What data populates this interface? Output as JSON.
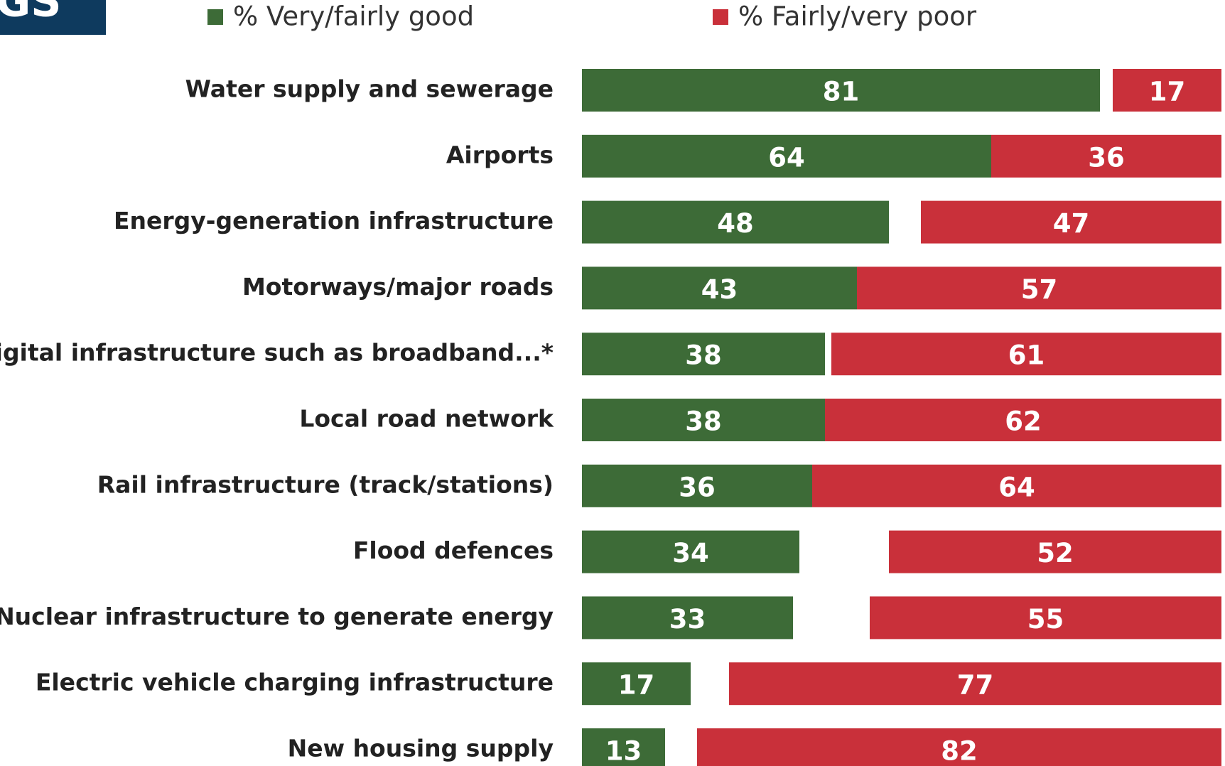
{
  "logo_text": "GS",
  "chart_data": {
    "type": "bar",
    "categories": [
      "Water supply and sewerage",
      "Airports",
      "Energy-generation infrastructure",
      "Motorways/major roads",
      "Digital infrastructure such as broadband...*",
      "Local road network",
      "Rail infrastructure (track/stations)",
      "Flood defences",
      "Nuclear infrastructure to generate energy",
      "Electric vehicle charging infrastructure",
      "New housing supply"
    ],
    "series": [
      {
        "name": "% Very/fairly good",
        "color": "#3d6b37",
        "values": [
          81,
          64,
          48,
          43,
          38,
          38,
          36,
          34,
          33,
          17,
          13
        ]
      },
      {
        "name": "% Fairly/very poor",
        "color": "#c9303a",
        "values": [
          17,
          36,
          47,
          57,
          61,
          62,
          64,
          52,
          55,
          77,
          82
        ]
      }
    ],
    "xlim": [
      0,
      100
    ]
  }
}
